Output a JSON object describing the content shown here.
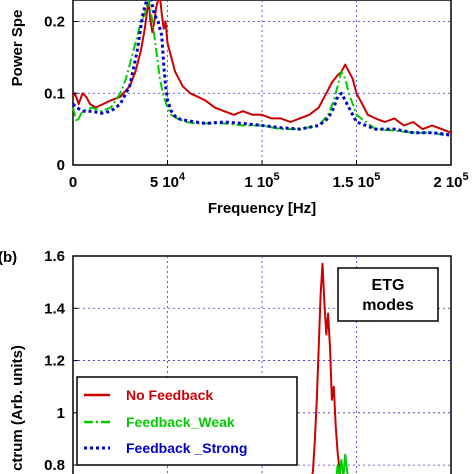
{
  "chart_data": [
    {
      "type": "line",
      "ylabel": "Power Spe",
      "xlabel": "Frequency [Hz]",
      "xlim": [
        0,
        200000
      ],
      "ylim": [
        0,
        0.23
      ],
      "grid": true,
      "x_ticks": [
        {
          "value": 0,
          "label": "0"
        },
        {
          "value": 50000,
          "label": "5 10"
        },
        {
          "value": 100000,
          "label": "1 10"
        },
        {
          "value": 150000,
          "label": "1.5 10"
        },
        {
          "value": 200000,
          "label": "2 10"
        }
      ],
      "x_tick_exponents": [
        "",
        "4",
        "5",
        "5",
        "5"
      ],
      "y_ticks": [
        {
          "value": 0,
          "label": "0"
        },
        {
          "value": 0.1,
          "label": "0.1"
        },
        {
          "value": 0.2,
          "label": "0.2"
        }
      ],
      "series": [
        {
          "color": "#cc0000",
          "style": "solid",
          "x": [
            0,
            1000,
            3000,
            5000,
            7000,
            9000,
            12000,
            16000,
            20000,
            25000,
            30000,
            33000,
            36000,
            38000,
            39000,
            40000,
            41000,
            42000,
            43000,
            44000,
            45000,
            46000,
            47000,
            48000,
            49000,
            50000,
            52000,
            54000,
            58000,
            62000,
            66000,
            70000,
            75000,
            80000,
            85000,
            90000,
            95000,
            100000,
            105000,
            110000,
            115000,
            120000,
            125000,
            130000,
            134000,
            137000,
            140000,
            142000,
            144000,
            146000,
            148000,
            150000,
            153000,
            156000,
            160000,
            165000,
            170000,
            175000,
            180000,
            185000,
            190000,
            195000,
            200000
          ],
          "y": [
            0.095,
            0.1,
            0.085,
            0.1,
            0.095,
            0.085,
            0.08,
            0.085,
            0.09,
            0.095,
            0.11,
            0.13,
            0.16,
            0.19,
            0.21,
            0.23,
            0.2,
            0.185,
            0.2,
            0.22,
            0.23,
            0.235,
            0.21,
            0.19,
            0.2,
            0.17,
            0.15,
            0.13,
            0.11,
            0.1,
            0.095,
            0.09,
            0.08,
            0.075,
            0.07,
            0.075,
            0.07,
            0.07,
            0.065,
            0.065,
            0.06,
            0.065,
            0.07,
            0.08,
            0.1,
            0.115,
            0.125,
            0.13,
            0.14,
            0.13,
            0.12,
            0.1,
            0.085,
            0.07,
            0.065,
            0.06,
            0.065,
            0.055,
            0.06,
            0.05,
            0.055,
            0.05,
            0.045
          ]
        },
        {
          "color": "#00cc00",
          "style": "dashdot",
          "x": [
            0,
            2000,
            5000,
            10000,
            15000,
            20000,
            25000,
            28000,
            30000,
            32000,
            34000,
            36000,
            38000,
            40000,
            42000,
            44000,
            46000,
            48000,
            50000,
            52000,
            55000,
            60000,
            65000,
            70000,
            80000,
            90000,
            100000,
            110000,
            120000,
            130000,
            135000,
            138000,
            140000,
            142000,
            144000,
            146000,
            148000,
            150000,
            155000,
            160000,
            170000,
            180000,
            190000,
            200000
          ],
          "y": [
            0.08,
            0.06,
            0.075,
            0.08,
            0.075,
            0.08,
            0.1,
            0.12,
            0.14,
            0.16,
            0.18,
            0.2,
            0.21,
            0.23,
            0.2,
            0.16,
            0.12,
            0.095,
            0.08,
            0.07,
            0.065,
            0.06,
            0.058,
            0.058,
            0.058,
            0.055,
            0.055,
            0.05,
            0.05,
            0.055,
            0.07,
            0.09,
            0.11,
            0.13,
            0.12,
            0.1,
            0.085,
            0.07,
            0.06,
            0.05,
            0.048,
            0.045,
            0.045,
            0.04
          ]
        },
        {
          "color": "#0000cc",
          "style": "dotted",
          "x": [
            0,
            2000,
            5000,
            10000,
            15000,
            20000,
            25000,
            30000,
            34000,
            37000,
            39000,
            41000,
            43000,
            45000,
            46000,
            47000,
            48000,
            49000,
            50000,
            52000,
            55000,
            60000,
            65000,
            70000,
            80000,
            90000,
            100000,
            110000,
            120000,
            130000,
            135000,
            138000,
            140000,
            142000,
            144000,
            146000,
            148000,
            150000,
            155000,
            160000,
            170000,
            180000,
            190000,
            200000
          ],
          "y": [
            0.085,
            0.08,
            0.075,
            0.075,
            0.072,
            0.075,
            0.085,
            0.11,
            0.16,
            0.21,
            0.23,
            0.235,
            0.21,
            0.2,
            0.19,
            0.18,
            0.14,
            0.11,
            0.09,
            0.075,
            0.065,
            0.062,
            0.06,
            0.058,
            0.06,
            0.058,
            0.055,
            0.052,
            0.05,
            0.055,
            0.065,
            0.08,
            0.095,
            0.1,
            0.09,
            0.08,
            0.07,
            0.06,
            0.055,
            0.05,
            0.05,
            0.045,
            0.045,
            0.042
          ]
        }
      ]
    },
    {
      "type": "line",
      "panel_label": "(b)",
      "ylabel": "ctrum (Arb. units)",
      "xlim": [
        0,
        200000
      ],
      "ylim": [
        0.72,
        1.6
      ],
      "grid": true,
      "annotation": [
        "ETG",
        "modes"
      ],
      "legend": {
        "position": "bottom-left",
        "entries": [
          {
            "label": "No Feedback",
            "color": "#cc0000"
          },
          {
            "label": "Feedback_Weak",
            "color": "#00cc00"
          },
          {
            "label": "Feedback _Strong",
            "color": "#0000cc"
          }
        ]
      },
      "y_ticks": [
        {
          "value": 0.8,
          "label": "0.8"
        },
        {
          "value": 1.0,
          "label": "1"
        },
        {
          "value": 1.2,
          "label": "1.2"
        },
        {
          "value": 1.4,
          "label": "1.4"
        },
        {
          "value": 1.6,
          "label": "1.6"
        }
      ],
      "series": [
        {
          "color": "#cc0000",
          "style": "solid",
          "x": [
            126000,
            127000,
            128000,
            129000,
            130000,
            131000,
            132000,
            133000,
            134000,
            135000,
            136000,
            137000,
            138000,
            139000,
            140000,
            141000,
            142000
          ],
          "y": [
            0.72,
            0.78,
            0.9,
            1.05,
            1.25,
            1.45,
            1.57,
            1.42,
            1.3,
            1.38,
            1.25,
            1.05,
            1.1,
            0.95,
            0.85,
            0.78,
            0.72
          ],
          "x_values_estimated": true
        },
        {
          "color": "#00cc00",
          "style": "solid",
          "x": [
            139000,
            140000,
            141000,
            142000,
            143000,
            144000,
            145000,
            146000
          ],
          "y": [
            0.72,
            0.8,
            0.76,
            0.82,
            0.75,
            0.84,
            0.78,
            0.72
          ]
        }
      ]
    }
  ]
}
